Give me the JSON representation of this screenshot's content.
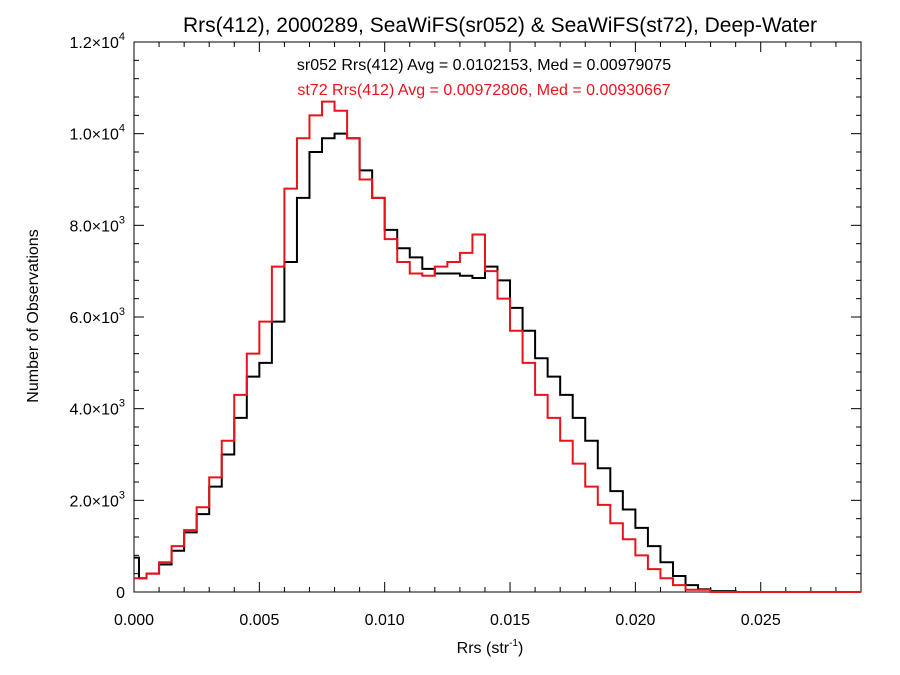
{
  "chart_data": {
    "type": "histogram-step",
    "title": "Rrs(412), 2000289, SeaWiFS(sr052) & SeaWiFS(st72), Deep-Water",
    "xlabel": {
      "base": "Rrs (str",
      "sup": "-1",
      "tail": ")"
    },
    "ylabel": "Number of Observations",
    "xlim": [
      0.0,
      0.029
    ],
    "ylim": [
      0,
      12000
    ],
    "x_ticks": [
      {
        "value": 0.0,
        "label": "0.000"
      },
      {
        "value": 0.005,
        "label": "0.005"
      },
      {
        "value": 0.01,
        "label": "0.010"
      },
      {
        "value": 0.015,
        "label": "0.015"
      },
      {
        "value": 0.02,
        "label": "0.020"
      },
      {
        "value": 0.025,
        "label": "0.025"
      }
    ],
    "y_ticks": [
      {
        "value": 0,
        "mant": "0",
        "exp": ""
      },
      {
        "value": 2000,
        "mant": "2.0×10",
        "exp": "3"
      },
      {
        "value": 4000,
        "mant": "4.0×10",
        "exp": "3"
      },
      {
        "value": 6000,
        "mant": "6.0×10",
        "exp": "3"
      },
      {
        "value": 8000,
        "mant": "8.0×10",
        "exp": "3"
      },
      {
        "value": 10000,
        "mant": "1.0×10",
        "exp": "4"
      },
      {
        "value": 12000,
        "mant": "1.2×10",
        "exp": "4"
      }
    ],
    "annotations": [
      {
        "text": "sr052 Rrs(412) Avg = 0.0102153, Med = 0.00979075",
        "color": "#000000"
      },
      {
        "text": "st72 Rrs(412) Avg = 0.00972806, Med = 0.00930667",
        "color": "#e8141c"
      }
    ],
    "series": [
      {
        "name": "sr052",
        "color": "#000000",
        "points": [
          [
            0.0,
            750
          ],
          [
            0.0002,
            300
          ],
          [
            0.0005,
            400
          ],
          [
            0.001,
            600
          ],
          [
            0.0015,
            900
          ],
          [
            0.002,
            1300
          ],
          [
            0.0025,
            1700
          ],
          [
            0.003,
            2300
          ],
          [
            0.0035,
            3000
          ],
          [
            0.004,
            3800
          ],
          [
            0.0045,
            4700
          ],
          [
            0.005,
            5000
          ],
          [
            0.0055,
            5900
          ],
          [
            0.006,
            7200
          ],
          [
            0.0065,
            8600
          ],
          [
            0.007,
            9600
          ],
          [
            0.0075,
            9900
          ],
          [
            0.008,
            10000
          ],
          [
            0.0085,
            9900
          ],
          [
            0.009,
            9200
          ],
          [
            0.0095,
            8600
          ],
          [
            0.01,
            7900
          ],
          [
            0.0105,
            7500
          ],
          [
            0.011,
            7300
          ],
          [
            0.0115,
            7050
          ],
          [
            0.012,
            6950
          ],
          [
            0.0125,
            6950
          ],
          [
            0.013,
            6900
          ],
          [
            0.0135,
            6850
          ],
          [
            0.014,
            7100
          ],
          [
            0.0145,
            6800
          ],
          [
            0.015,
            6200
          ],
          [
            0.0155,
            5700
          ],
          [
            0.016,
            5100
          ],
          [
            0.0165,
            4700
          ],
          [
            0.017,
            4300
          ],
          [
            0.0175,
            3800
          ],
          [
            0.018,
            3300
          ],
          [
            0.0185,
            2700
          ],
          [
            0.019,
            2200
          ],
          [
            0.0195,
            1800
          ],
          [
            0.02,
            1400
          ],
          [
            0.0205,
            1000
          ],
          [
            0.021,
            650
          ],
          [
            0.0215,
            350
          ],
          [
            0.022,
            150
          ],
          [
            0.0225,
            60
          ],
          [
            0.023,
            20
          ],
          [
            0.024,
            0
          ],
          [
            0.029,
            0
          ]
        ]
      },
      {
        "name": "st72",
        "color": "#e8141c",
        "points": [
          [
            0.0,
            300
          ],
          [
            0.0005,
            400
          ],
          [
            0.001,
            650
          ],
          [
            0.0015,
            1000
          ],
          [
            0.002,
            1350
          ],
          [
            0.0025,
            1850
          ],
          [
            0.003,
            2500
          ],
          [
            0.0035,
            3300
          ],
          [
            0.004,
            4300
          ],
          [
            0.0045,
            5200
          ],
          [
            0.005,
            5900
          ],
          [
            0.0055,
            7100
          ],
          [
            0.006,
            8800
          ],
          [
            0.0065,
            9900
          ],
          [
            0.007,
            10400
          ],
          [
            0.0075,
            10700
          ],
          [
            0.008,
            10500
          ],
          [
            0.0085,
            9900
          ],
          [
            0.009,
            9000
          ],
          [
            0.0095,
            8600
          ],
          [
            0.01,
            7700
          ],
          [
            0.0105,
            7200
          ],
          [
            0.011,
            6950
          ],
          [
            0.0115,
            6900
          ],
          [
            0.012,
            7100
          ],
          [
            0.0125,
            7200
          ],
          [
            0.013,
            7400
          ],
          [
            0.0135,
            7800
          ],
          [
            0.014,
            7000
          ],
          [
            0.0145,
            6400
          ],
          [
            0.015,
            5700
          ],
          [
            0.0155,
            5000
          ],
          [
            0.016,
            4300
          ],
          [
            0.0165,
            3800
          ],
          [
            0.017,
            3300
          ],
          [
            0.0175,
            2800
          ],
          [
            0.018,
            2300
          ],
          [
            0.0185,
            1900
          ],
          [
            0.019,
            1500
          ],
          [
            0.0195,
            1150
          ],
          [
            0.02,
            800
          ],
          [
            0.0205,
            500
          ],
          [
            0.021,
            300
          ],
          [
            0.0215,
            150
          ],
          [
            0.022,
            50
          ],
          [
            0.023,
            0
          ],
          [
            0.029,
            0
          ]
        ]
      }
    ]
  }
}
